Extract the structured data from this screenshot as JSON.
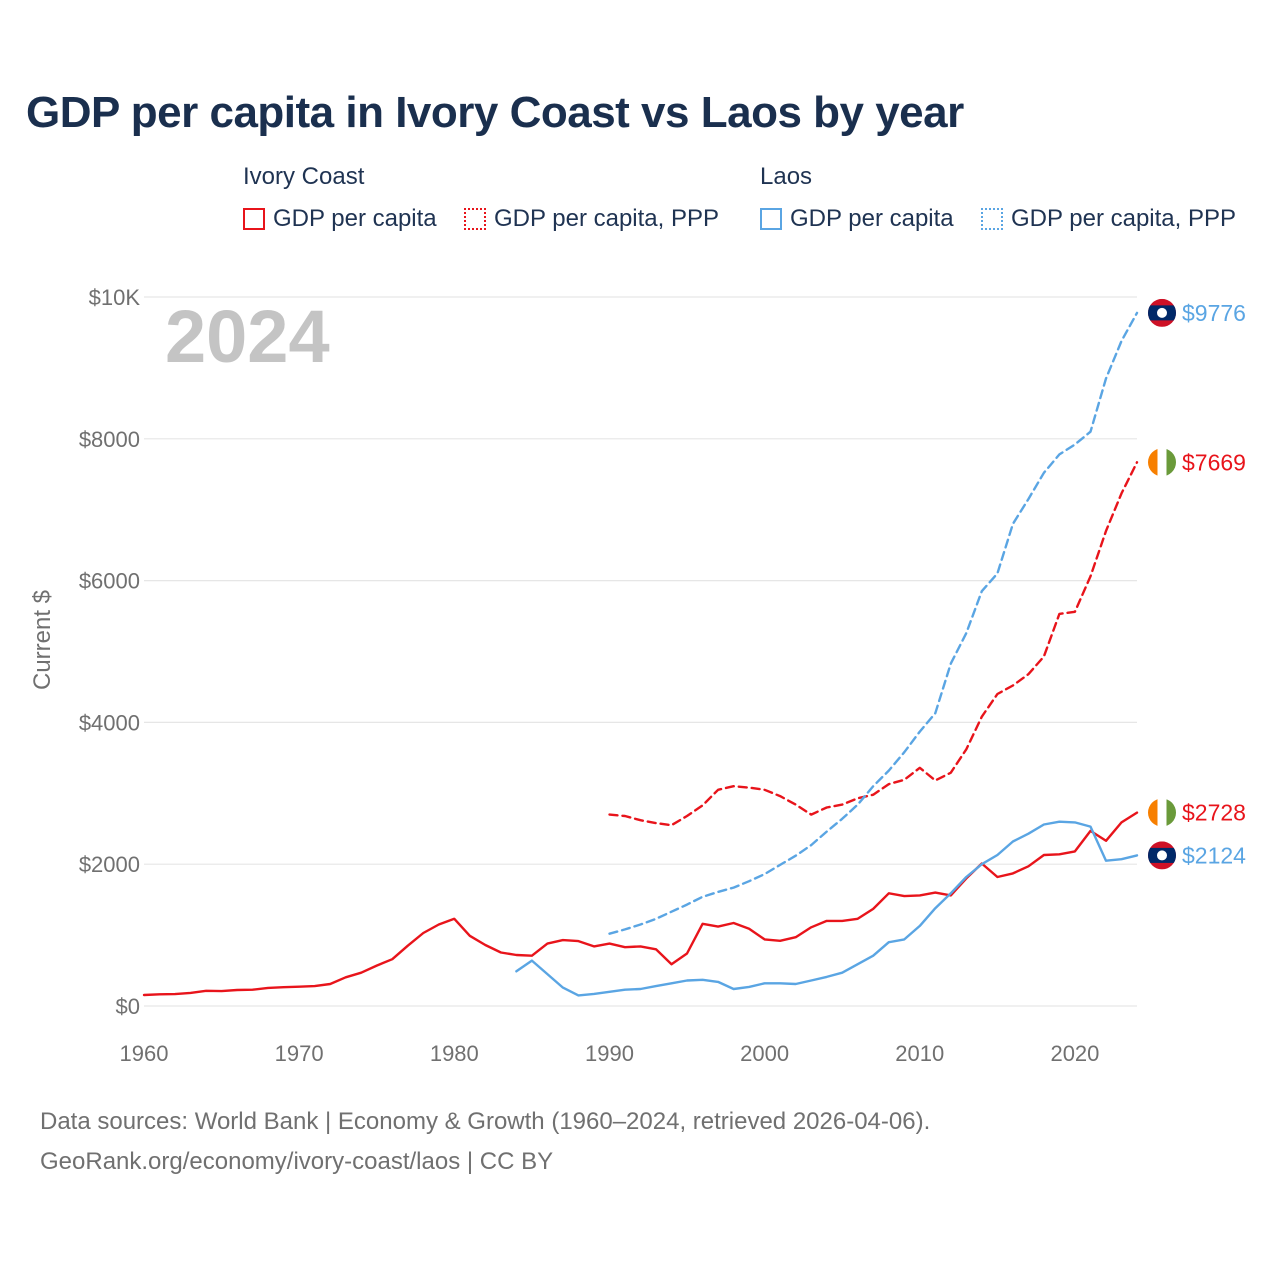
{
  "title": "GDP per capita in Ivory Coast vs Laos by year",
  "legend": {
    "groups": [
      {
        "name": "Ivory Coast",
        "color": "#e8141b",
        "items": [
          {
            "label": "GDP per capita",
            "style": "solid"
          },
          {
            "label": "GDP per capita, PPP",
            "style": "dotted"
          }
        ]
      },
      {
        "name": "Laos",
        "color": "#5aa5e3",
        "items": [
          {
            "label": "GDP per capita",
            "style": "solid"
          },
          {
            "label": "GDP per capita, PPP",
            "style": "dotted"
          }
        ]
      }
    ]
  },
  "year_watermark": "2024",
  "footer": {
    "line1": "Data sources: World Bank | Economy & Growth (1960–2024, retrieved 2026-04-06).",
    "line2": "GeoRank.org/economy/ivory-coast/laos | CC BY"
  },
  "chart_data": {
    "type": "line",
    "title": "GDP per capita in Ivory Coast vs Laos by year",
    "xlabel": "",
    "ylabel": "Current $",
    "xlim": [
      1960,
      2024
    ],
    "ylim": [
      0,
      10000
    ],
    "x_ticks": [
      1960,
      1970,
      1980,
      1990,
      2000,
      2010,
      2020
    ],
    "x_tick_labels": [
      "1960",
      "1970",
      "1980",
      "1990",
      "2000",
      "2010",
      "2020"
    ],
    "y_ticks": [
      0,
      2000,
      4000,
      6000,
      8000,
      10000
    ],
    "y_tick_labels": [
      "$0",
      "$2000",
      "$4000",
      "$6000",
      "$8000",
      "$10K"
    ],
    "grid": true,
    "series": [
      {
        "name": "Ivory Coast GDP per capita",
        "country": "Ivory Coast",
        "flag": "ivory-coast",
        "color": "#e8141b",
        "dash": "solid",
        "end_label": "$2728",
        "x": [
          1960,
          1961,
          1962,
          1963,
          1964,
          1965,
          1966,
          1967,
          1968,
          1969,
          1970,
          1971,
          1972,
          1973,
          1974,
          1975,
          1976,
          1977,
          1978,
          1979,
          1980,
          1981,
          1982,
          1983,
          1984,
          1985,
          1986,
          1987,
          1988,
          1989,
          1990,
          1991,
          1992,
          1993,
          1994,
          1995,
          1996,
          1997,
          1998,
          1999,
          2000,
          2001,
          2002,
          2003,
          2004,
          2005,
          2006,
          2007,
          2008,
          2009,
          2010,
          2011,
          2012,
          2013,
          2014,
          2015,
          2016,
          2017,
          2018,
          2019,
          2020,
          2021,
          2022,
          2023,
          2024
        ],
        "values": [
          155,
          165,
          168,
          185,
          215,
          210,
          225,
          230,
          255,
          265,
          272,
          280,
          310,
          405,
          470,
          570,
          660,
          850,
          1030,
          1150,
          1230,
          990,
          860,
          755,
          720,
          710,
          880,
          930,
          915,
          840,
          880,
          830,
          840,
          800,
          590,
          740,
          1160,
          1120,
          1170,
          1090,
          940,
          920,
          970,
          1110,
          1200,
          1200,
          1230,
          1370,
          1590,
          1550,
          1560,
          1600,
          1560,
          1800,
          2010,
          1820,
          1870,
          1970,
          2130,
          2140,
          2180,
          2470,
          2330,
          2590,
          2728
        ]
      },
      {
        "name": "Ivory Coast GDP per capita, PPP",
        "country": "Ivory Coast",
        "flag": "ivory-coast",
        "color": "#e8141b",
        "dash": "dashed",
        "end_label": "$7669",
        "x": [
          1990,
          1991,
          1992,
          1993,
          1994,
          1995,
          1996,
          1997,
          1998,
          1999,
          2000,
          2001,
          2002,
          2003,
          2004,
          2005,
          2006,
          2007,
          2008,
          2009,
          2010,
          2011,
          2012,
          2013,
          2014,
          2015,
          2016,
          2017,
          2018,
          2019,
          2020,
          2021,
          2022,
          2023,
          2024
        ],
        "values": [
          2700,
          2680,
          2620,
          2580,
          2550,
          2680,
          2830,
          3050,
          3100,
          3080,
          3050,
          2960,
          2840,
          2700,
          2800,
          2840,
          2930,
          2980,
          3130,
          3190,
          3360,
          3180,
          3290,
          3620,
          4080,
          4400,
          4520,
          4680,
          4930,
          5530,
          5560,
          6060,
          6700,
          7230,
          7669
        ]
      },
      {
        "name": "Laos GDP per capita",
        "country": "Laos",
        "flag": "laos",
        "color": "#5aa5e3",
        "dash": "solid",
        "end_label": "$2124",
        "x": [
          1984,
          1985,
          1986,
          1987,
          1988,
          1989,
          1990,
          1991,
          1992,
          1993,
          1994,
          1995,
          1996,
          1997,
          1998,
          1999,
          2000,
          2001,
          2002,
          2003,
          2004,
          2005,
          2006,
          2007,
          2008,
          2009,
          2010,
          2011,
          2012,
          2013,
          2014,
          2015,
          2016,
          2017,
          2018,
          2019,
          2020,
          2021,
          2022,
          2023,
          2024
        ],
        "values": [
          490,
          640,
          450,
          260,
          150,
          170,
          200,
          230,
          240,
          280,
          320,
          360,
          370,
          340,
          240,
          270,
          320,
          320,
          310,
          360,
          410,
          470,
          590,
          710,
          900,
          940,
          1130,
          1380,
          1590,
          1820,
          2000,
          2130,
          2320,
          2430,
          2560,
          2600,
          2590,
          2530,
          2050,
          2070,
          2124
        ]
      },
      {
        "name": "Laos GDP per capita, PPP",
        "country": "Laos",
        "flag": "laos",
        "color": "#5aa5e3",
        "dash": "dashed",
        "end_label": "$9776",
        "x": [
          1990,
          1991,
          1992,
          1993,
          1994,
          1995,
          1996,
          1997,
          1998,
          1999,
          2000,
          2001,
          2002,
          2003,
          2004,
          2005,
          2006,
          2007,
          2008,
          2009,
          2010,
          2011,
          2012,
          2013,
          2014,
          2015,
          2016,
          2017,
          2018,
          2019,
          2020,
          2021,
          2022,
          2023,
          2024
        ],
        "values": [
          1020,
          1080,
          1150,
          1230,
          1330,
          1430,
          1540,
          1610,
          1670,
          1760,
          1860,
          1990,
          2120,
          2270,
          2460,
          2640,
          2840,
          3100,
          3320,
          3580,
          3870,
          4130,
          4830,
          5260,
          5850,
          6100,
          6800,
          7150,
          7520,
          7780,
          7920,
          8100,
          8850,
          9380,
          9776
        ]
      }
    ]
  }
}
